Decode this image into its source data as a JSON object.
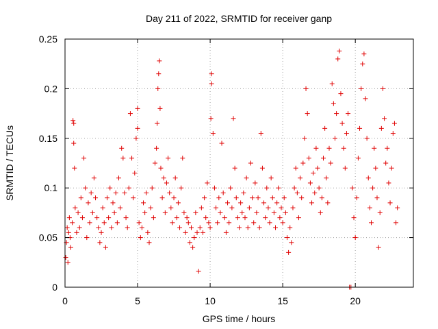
{
  "chart_data": {
    "type": "scatter",
    "title": "Day 211 of 2022, SRMTID for receiver ganp",
    "xlabel": "GPS time / hours",
    "ylabel": "SRMTID / TECUs",
    "xlim": [
      0,
      24
    ],
    "ylim": [
      0,
      0.25
    ],
    "xticks": [
      0,
      5,
      10,
      15,
      20
    ],
    "xtick_labels": [
      "0",
      "5",
      "10",
      "15",
      "20"
    ],
    "yticks": [
      0,
      0.05,
      0.1,
      0.15,
      0.2,
      0.25
    ],
    "ytick_labels": [
      "0",
      "0.05",
      "0.1",
      "0.15",
      "0.2",
      "0.25"
    ],
    "grid": true,
    "marker": "+",
    "color": "#e00000",
    "x_range_of_data": [
      0,
      23
    ],
    "series": [
      {
        "name": "SRMTID",
        "points": [
          [
            0.05,
            0.03
          ],
          [
            0.1,
            0.045
          ],
          [
            0.15,
            0.06
          ],
          [
            0.2,
            0.025
          ],
          [
            0.25,
            0.055
          ],
          [
            0.3,
            0.07
          ],
          [
            0.35,
            0.05
          ],
          [
            0.4,
            0.04
          ],
          [
            0.5,
            0.065
          ],
          [
            0.55,
            0.168
          ],
          [
            0.6,
            0.165
          ],
          [
            0.6,
            0.145
          ],
          [
            0.65,
            0.12
          ],
          [
            0.7,
            0.08
          ],
          [
            0.8,
            0.055
          ],
          [
            0.9,
            0.075
          ],
          [
            1.0,
            0.06
          ],
          [
            1.1,
            0.09
          ],
          [
            1.2,
            0.07
          ],
          [
            1.3,
            0.13
          ],
          [
            1.4,
            0.1
          ],
          [
            1.5,
            0.05
          ],
          [
            1.6,
            0.085
          ],
          [
            1.7,
            0.065
          ],
          [
            1.8,
            0.095
          ],
          [
            1.9,
            0.075
          ],
          [
            2.0,
            0.11
          ],
          [
            2.1,
            0.09
          ],
          [
            2.2,
            0.07
          ],
          [
            2.3,
            0.06
          ],
          [
            2.4,
            0.045
          ],
          [
            2.5,
            0.055
          ],
          [
            2.6,
            0.08
          ],
          [
            2.7,
            0.065
          ],
          [
            2.8,
            0.04
          ],
          [
            2.9,
            0.09
          ],
          [
            3.0,
            0.07
          ],
          [
            3.1,
            0.1
          ],
          [
            3.2,
            0.06
          ],
          [
            3.3,
            0.085
          ],
          [
            3.4,
            0.075
          ],
          [
            3.5,
            0.095
          ],
          [
            3.6,
            0.065
          ],
          [
            3.7,
            0.11
          ],
          [
            3.8,
            0.08
          ],
          [
            3.9,
            0.14
          ],
          [
            4.0,
            0.13
          ],
          [
            4.1,
            0.095
          ],
          [
            4.2,
            0.07
          ],
          [
            4.3,
            0.06
          ],
          [
            4.4,
            0.1
          ],
          [
            4.5,
            0.175
          ],
          [
            4.6,
            0.13
          ],
          [
            4.7,
            0.09
          ],
          [
            4.8,
            0.115
          ],
          [
            4.9,
            0.15
          ],
          [
            5.0,
            0.16
          ],
          [
            5.0,
            0.18
          ],
          [
            5.1,
            0.065
          ],
          [
            5.2,
            0.05
          ],
          [
            5.3,
            0.06
          ],
          [
            5.4,
            0.085
          ],
          [
            5.5,
            0.075
          ],
          [
            5.6,
            0.095
          ],
          [
            5.7,
            0.055
          ],
          [
            5.8,
            0.045
          ],
          [
            5.9,
            0.08
          ],
          [
            6.0,
            0.1
          ],
          [
            6.1,
            0.07
          ],
          [
            6.2,
            0.125
          ],
          [
            6.3,
            0.14
          ],
          [
            6.35,
            0.165
          ],
          [
            6.4,
            0.2
          ],
          [
            6.45,
            0.215
          ],
          [
            6.5,
            0.228
          ],
          [
            6.55,
            0.18
          ],
          [
            6.6,
            0.12
          ],
          [
            6.7,
            0.09
          ],
          [
            6.8,
            0.11
          ],
          [
            6.9,
            0.075
          ],
          [
            7.0,
            0.105
          ],
          [
            7.1,
            0.13
          ],
          [
            7.2,
            0.095
          ],
          [
            7.3,
            0.08
          ],
          [
            7.4,
            0.065
          ],
          [
            7.5,
            0.09
          ],
          [
            7.6,
            0.11
          ],
          [
            7.7,
            0.07
          ],
          [
            7.8,
            0.085
          ],
          [
            7.9,
            0.06
          ],
          [
            8.0,
            0.1
          ],
          [
            8.1,
            0.13
          ],
          [
            8.2,
            0.075
          ],
          [
            8.3,
            0.055
          ],
          [
            8.4,
            0.07
          ],
          [
            8.5,
            0.065
          ],
          [
            8.6,
            0.045
          ],
          [
            8.7,
            0.06
          ],
          [
            8.8,
            0.04
          ],
          [
            8.9,
            0.05
          ],
          [
            9.0,
            0.075
          ],
          [
            9.1,
            0.055
          ],
          [
            9.2,
            0.016
          ],
          [
            9.3,
            0.06
          ],
          [
            9.4,
            0.08
          ],
          [
            9.5,
            0.055
          ],
          [
            9.6,
            0.09
          ],
          [
            9.7,
            0.07
          ],
          [
            9.8,
            0.105
          ],
          [
            9.9,
            0.065
          ],
          [
            10.0,
            0.06
          ],
          [
            10.05,
            0.17
          ],
          [
            10.1,
            0.215
          ],
          [
            10.1,
            0.205
          ],
          [
            10.2,
            0.155
          ],
          [
            10.3,
            0.1
          ],
          [
            10.4,
            0.08
          ],
          [
            10.5,
            0.065
          ],
          [
            10.6,
            0.09
          ],
          [
            10.7,
            0.075
          ],
          [
            10.8,
            0.145
          ],
          [
            10.9,
            0.095
          ],
          [
            11.0,
            0.07
          ],
          [
            11.1,
            0.055
          ],
          [
            11.2,
            0.085
          ],
          [
            11.3,
            0.065
          ],
          [
            11.4,
            0.1
          ],
          [
            11.5,
            0.08
          ],
          [
            11.6,
            0.17
          ],
          [
            11.7,
            0.12
          ],
          [
            11.8,
            0.09
          ],
          [
            11.9,
            0.07
          ],
          [
            12.0,
            0.06
          ],
          [
            12.1,
            0.085
          ],
          [
            12.2,
            0.075
          ],
          [
            12.3,
            0.095
          ],
          [
            12.4,
            0.07
          ],
          [
            12.5,
            0.11
          ],
          [
            12.6,
            0.06
          ],
          [
            12.7,
            0.08
          ],
          [
            12.8,
            0.125
          ],
          [
            12.9,
            0.09
          ],
          [
            13.0,
            0.065
          ],
          [
            13.1,
            0.105
          ],
          [
            13.2,
            0.075
          ],
          [
            13.3,
            0.09
          ],
          [
            13.4,
            0.06
          ],
          [
            13.5,
            0.155
          ],
          [
            13.6,
            0.12
          ],
          [
            13.7,
            0.085
          ],
          [
            13.8,
            0.07
          ],
          [
            13.9,
            0.1
          ],
          [
            14.0,
            0.08
          ],
          [
            14.1,
            0.065
          ],
          [
            14.2,
            0.11
          ],
          [
            14.3,
            0.09
          ],
          [
            14.4,
            0.075
          ],
          [
            14.5,
            0.06
          ],
          [
            14.6,
            0.085
          ],
          [
            14.7,
            0.1
          ],
          [
            14.8,
            0.07
          ],
          [
            14.9,
            0.08
          ],
          [
            15.0,
            0.065
          ],
          [
            15.1,
            0.09
          ],
          [
            15.2,
            0.075
          ],
          [
            15.3,
            0.05
          ],
          [
            15.4,
            0.035
          ],
          [
            15.5,
            0.06
          ],
          [
            15.6,
            0.045
          ],
          [
            15.7,
            0.08
          ],
          [
            15.8,
            0.1
          ],
          [
            15.9,
            0.12
          ],
          [
            16.0,
            0.095
          ],
          [
            16.1,
            0.07
          ],
          [
            16.2,
            0.11
          ],
          [
            16.3,
            0.09
          ],
          [
            16.4,
            0.125
          ],
          [
            16.5,
            0.15
          ],
          [
            16.6,
            0.2
          ],
          [
            16.7,
            0.175
          ],
          [
            16.8,
            0.13
          ],
          [
            16.9,
            0.105
          ],
          [
            17.0,
            0.085
          ],
          [
            17.1,
            0.115
          ],
          [
            17.2,
            0.095
          ],
          [
            17.3,
            0.14
          ],
          [
            17.4,
            0.12
          ],
          [
            17.5,
            0.1
          ],
          [
            17.6,
            0.075
          ],
          [
            17.7,
            0.09
          ],
          [
            17.8,
            0.13
          ],
          [
            17.9,
            0.16
          ],
          [
            18.0,
            0.11
          ],
          [
            18.1,
            0.085
          ],
          [
            18.2,
            0.14
          ],
          [
            18.3,
            0.125
          ],
          [
            18.4,
            0.205
          ],
          [
            18.5,
            0.185
          ],
          [
            18.6,
            0.15
          ],
          [
            18.7,
            0.175
          ],
          [
            18.8,
            0.23
          ],
          [
            18.9,
            0.238
          ],
          [
            19.0,
            0.195
          ],
          [
            19.1,
            0.165
          ],
          [
            19.2,
            0.14
          ],
          [
            19.3,
            0.12
          ],
          [
            19.4,
            0.155
          ],
          [
            19.5,
            0.175
          ],
          [
            19.6,
            0.0
          ],
          [
            19.7,
            0.0
          ],
          [
            19.8,
            0.1
          ],
          [
            19.9,
            0.07
          ],
          [
            20.0,
            0.05
          ],
          [
            20.1,
            0.09
          ],
          [
            20.2,
            0.13
          ],
          [
            20.3,
            0.16
          ],
          [
            20.4,
            0.2
          ],
          [
            20.5,
            0.225
          ],
          [
            20.6,
            0.235
          ],
          [
            20.7,
            0.19
          ],
          [
            20.8,
            0.15
          ],
          [
            20.9,
            0.11
          ],
          [
            21.0,
            0.08
          ],
          [
            21.1,
            0.065
          ],
          [
            21.2,
            0.1
          ],
          [
            21.3,
            0.14
          ],
          [
            21.4,
            0.12
          ],
          [
            21.5,
            0.09
          ],
          [
            21.6,
            0.04
          ],
          [
            21.7,
            0.075
          ],
          [
            21.8,
            0.16
          ],
          [
            21.9,
            0.2
          ],
          [
            22.0,
            0.17
          ],
          [
            22.1,
            0.125
          ],
          [
            22.2,
            0.14
          ],
          [
            22.3,
            0.105
          ],
          [
            22.4,
            0.085
          ],
          [
            22.5,
            0.12
          ],
          [
            22.6,
            0.155
          ],
          [
            22.7,
            0.165
          ],
          [
            22.8,
            0.065
          ],
          [
            22.9,
            0.08
          ]
        ]
      }
    ]
  }
}
